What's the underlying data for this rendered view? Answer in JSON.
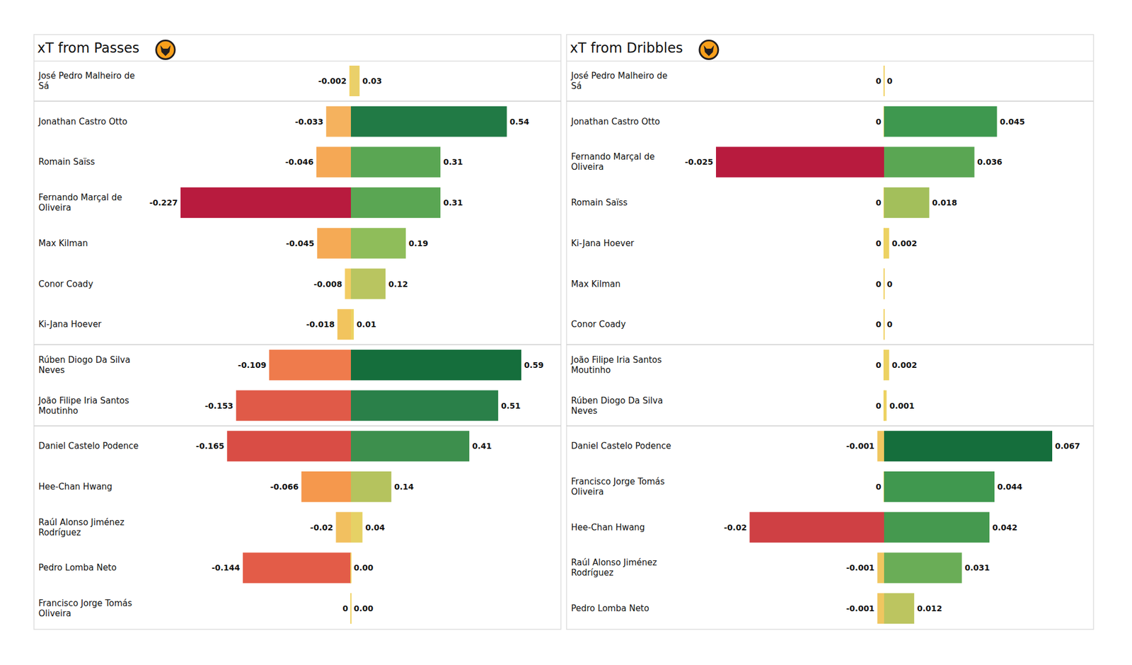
{
  "chart_data": [
    {
      "type": "bar",
      "orientation": "horizontal",
      "stacked": true,
      "data_labels": true,
      "tick_labels": false,
      "title": "xT from Passes",
      "xlim": [
        -0.227,
        0.59
      ],
      "categories": [
        "José Pedro Malheiro de Sá",
        "Jonathan Castro Otto",
        "Romain Saïss",
        "Fernando Marçal de Oliveira",
        "Max Kilman",
        "Conor  Coady",
        "Ki-Jana Hoever",
        "Rúben Diogo Da Silva Neves",
        "João Filipe Iria Santos Moutinho",
        "Daniel Castelo Podence",
        "Hee-Chan Hwang",
        "Raúl Alonso Jiménez Rodríguez",
        "Pedro Lomba Neto",
        "Francisco Jorge Tomás Oliveira"
      ],
      "series": [
        {
          "values": [
            -0.002,
            -0.033,
            -0.046,
            -0.227,
            -0.045,
            -0.008,
            -0.018,
            -0.109,
            -0.153,
            -0.165,
            -0.066,
            -0.02,
            -0.144,
            0
          ],
          "value_labels": [
            "-0.002",
            "-0.033",
            "-0.046",
            "-0.227",
            "-0.045",
            "-0.008",
            "-0.018",
            "-0.109",
            "-0.153",
            "-0.165",
            "-0.066",
            "-0.02",
            "-0.144",
            "0"
          ],
          "colors": [
            "#f0d060",
            "#f5b25e",
            "#f5a855",
            "#b81b3e",
            "#f5aa55",
            "#f2cc63",
            "#f2c45e",
            "#ef7b4c",
            "#e05a48",
            "#d94d45",
            "#f5984d",
            "#f2c060",
            "#e35c48",
            "#f0d060"
          ]
        },
        {
          "values": [
            0.03,
            0.54,
            0.31,
            0.31,
            0.19,
            0.12,
            0.01,
            0.59,
            0.51,
            0.41,
            0.14,
            0.04,
            0,
            0
          ],
          "value_labels": [
            "0.03",
            "0.54",
            "0.31",
            "0.31",
            "0.19",
            "0.12",
            "0.01",
            "0.59",
            "0.51",
            "0.41",
            "0.14",
            "0.04",
            "0.00",
            "0.00"
          ],
          "colors": [
            "#ead06a",
            "#217a45",
            "#5aa653",
            "#5aa653",
            "#8fbd5a",
            "#b9c560",
            "#ecd262",
            "#156e3c",
            "#2a8049",
            "#3d8f4d",
            "#b5c35e",
            "#e6d165",
            "#f0d060",
            "#f0d060"
          ]
        }
      ]
    },
    {
      "type": "bar",
      "orientation": "horizontal",
      "stacked": true,
      "data_labels": true,
      "tick_labels": false,
      "title": "xT from Dribbles",
      "xlim": [
        -0.025,
        0.067
      ],
      "categories": [
        "José Pedro Malheiro de Sá",
        "Jonathan Castro Otto",
        "Fernando Marçal de Oliveira",
        "Romain Saïss",
        "Ki-Jana Hoever",
        "Max Kilman",
        "Conor  Coady",
        "João Filipe Iria Santos Moutinho",
        "Rúben Diogo Da Silva Neves",
        "Daniel Castelo Podence",
        "Francisco Jorge Tomás Oliveira",
        "Hee-Chan Hwang",
        "Raúl Alonso Jiménez Rodríguez",
        "Pedro Lomba Neto"
      ],
      "series": [
        {
          "values": [
            0,
            0,
            -0.025,
            0,
            0,
            0,
            0,
            0,
            0,
            -0.001,
            0,
            -0.02,
            -0.001,
            -0.001
          ],
          "value_labels": [
            "0",
            "0",
            "-0.025",
            "0",
            "0",
            "0",
            "0",
            "0",
            "0",
            "-0.001",
            "0",
            "-0.02",
            "-0.001",
            "-0.001"
          ],
          "colors": [
            "#f0d060",
            "#f0d060",
            "#b81b3e",
            "#f0d060",
            "#f0d060",
            "#f0d060",
            "#f0d060",
            "#f0d060",
            "#f0d060",
            "#f0c660",
            "#f0d060",
            "#cf4044",
            "#f0c660",
            "#f0c660"
          ]
        },
        {
          "values": [
            0,
            0.045,
            0.036,
            0.018,
            0.002,
            0,
            0,
            0.002,
            0.001,
            0.067,
            0.044,
            0.042,
            0.031,
            0.012
          ],
          "value_labels": [
            "0",
            "0.045",
            "0.036",
            "0.018",
            "0.002",
            "0",
            "0",
            "0.002",
            "0.001",
            "0.067",
            "0.044",
            "0.042",
            "0.031",
            "0.012"
          ],
          "colors": [
            "#f0d060",
            "#3e984f",
            "#5aa653",
            "#a3bf5b",
            "#ecd262",
            "#f0d060",
            "#f0d060",
            "#ecd262",
            "#ecd262",
            "#156e3c",
            "#40984f",
            "#45994f",
            "#6aad57",
            "#bcc560"
          ]
        }
      ]
    }
  ]
}
